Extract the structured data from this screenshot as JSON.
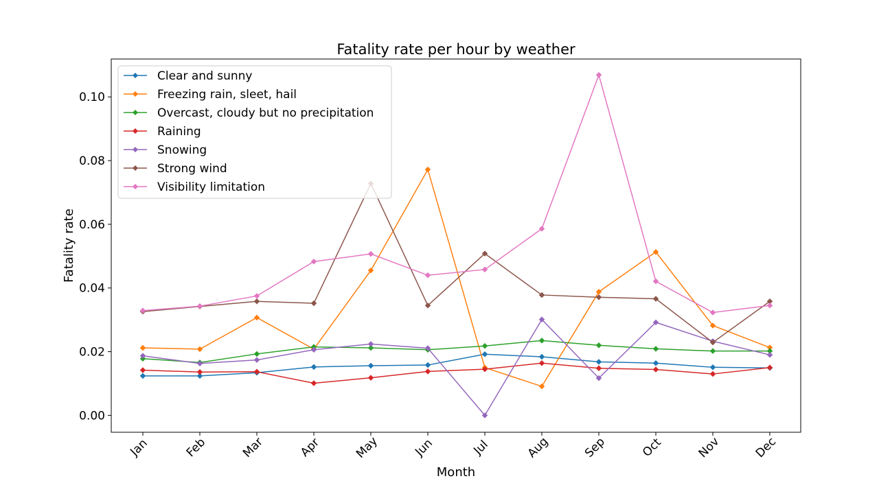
{
  "chart_data": {
    "type": "line",
    "title": "Fatality rate per hour by weather",
    "xlabel": "Month",
    "ylabel": "Fatality rate",
    "categories": [
      "Jan",
      "Feb",
      "Mar",
      "Apr",
      "May",
      "Jun",
      "Jul",
      "Aug",
      "Sep",
      "Oct",
      "Nov",
      "Dec"
    ],
    "ylim": [
      -0.0053,
      0.1119
    ],
    "yticks": [
      0.0,
      0.02,
      0.04,
      0.06,
      0.08,
      0.1
    ],
    "ytick_labels": [
      "0.00",
      "0.02",
      "0.04",
      "0.06",
      "0.08",
      "0.10"
    ],
    "grid": false,
    "legend_position": "top-left",
    "marker": "diamond",
    "series": [
      {
        "name": "Clear and sunny",
        "color": "#1f77b4",
        "values": [
          0.0124,
          0.0124,
          0.0134,
          0.0152,
          0.0156,
          0.0158,
          0.0192,
          0.0184,
          0.0168,
          0.0164,
          0.0151,
          0.0149
        ]
      },
      {
        "name": "Freezing rain, sleet, hail",
        "color": "#ff7f0e",
        "values": [
          0.0212,
          0.0208,
          0.0307,
          0.0208,
          0.0455,
          0.0772,
          0.015,
          0.0091,
          0.0388,
          0.0513,
          0.0282,
          0.0213
        ]
      },
      {
        "name": "Overcast, cloudy but no precipitation",
        "color": "#2ca02c",
        "values": [
          0.0178,
          0.0166,
          0.0193,
          0.0215,
          0.0212,
          0.0206,
          0.0218,
          0.0235,
          0.022,
          0.0209,
          0.0202,
          0.0202
        ]
      },
      {
        "name": "Raining",
        "color": "#d62728",
        "values": [
          0.0142,
          0.0136,
          0.0137,
          0.0101,
          0.0118,
          0.0138,
          0.0145,
          0.0164,
          0.0148,
          0.0144,
          0.013,
          0.015
        ]
      },
      {
        "name": "Snowing",
        "color": "#9467bd",
        "values": [
          0.0187,
          0.0163,
          0.0174,
          0.0206,
          0.0224,
          0.0211,
          0.0,
          0.0301,
          0.0117,
          0.0292,
          0.0233,
          0.019
        ]
      },
      {
        "name": "Strong wind",
        "color": "#8c564b",
        "values": [
          0.0326,
          0.0342,
          0.0358,
          0.0352,
          0.0728,
          0.0345,
          0.0508,
          0.0378,
          0.0371,
          0.0366,
          0.0229,
          0.0358
        ]
      },
      {
        "name": "Visibility limitation",
        "color": "#e377c2",
        "values": [
          0.0329,
          0.0343,
          0.0375,
          0.0483,
          0.0507,
          0.044,
          0.0458,
          0.0586,
          0.1069,
          0.0421,
          0.0323,
          0.0345
        ]
      }
    ]
  }
}
